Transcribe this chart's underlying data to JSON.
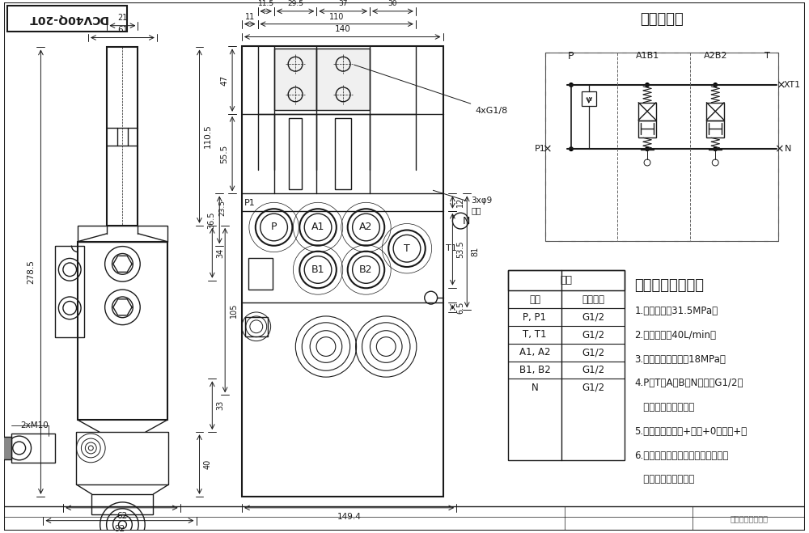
{
  "title": "DCV40Q-20T",
  "bg_color": "#ffffff",
  "lc": "#1a1a1a",
  "hydraulic_title": "液压原理图",
  "tech_title": "技术要求和参数：",
  "tbl_col1_hdr": "接口",
  "tbl_col2_hdr": "螺纹规格",
  "tbl_main_hdr": "阀体",
  "table_col1": [
    "P, P1",
    "T, T1",
    "A1, A2",
    "B1, B2",
    "N"
  ],
  "table_col2": [
    "G1/2",
    "G1/2",
    "G1/2",
    "G1/2",
    "G1/2"
  ],
  "tech_items": [
    "1.题定压力：31.5MPa；",
    "2.题定流量：40L/min，",
    "3.安全阀调定压力：18MPa；",
    "4.P、T、A、B、N口均为G1/2，",
    "   油口均为平面密封；",
    "5.控制方式：气控+手动+0型阀柁+弹",
    "6.阀体表面雾化处理，安全阀及螺堵",
    "   支架端盖为铝本色。"
  ],
  "bottom_text": "未经授权禁止复制",
  "ann_4xG18": "4xG1/8",
  "ann_3x9": "3xφ9\n透孔",
  "ann_2xM10": "2xM10"
}
